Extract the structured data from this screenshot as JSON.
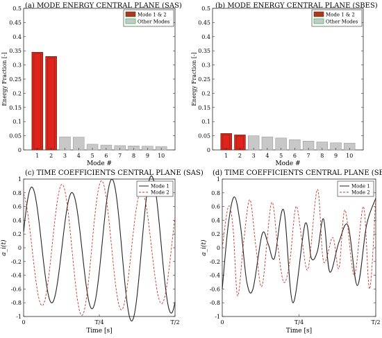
{
  "colors": {
    "mode12_fill": "#e0231c",
    "mode12_inner": "#8b2f12",
    "mode12_legend": "#a63c1c",
    "other_fill": "#c8c8c8",
    "other_legend_inner": "#28c75a",
    "mode1_line": "#222222",
    "mode2_line": "#c0392b",
    "artifact_pink": "#ff3df0"
  },
  "chart_data": [
    {
      "type": "bar",
      "title": "(a) MODE ENERGY CENTRAL PLANE (SAS)",
      "xlabel": "Mode #",
      "ylabel": "Energy Fraction [-]",
      "categories": [
        "1",
        "2",
        "3",
        "4",
        "5",
        "6",
        "7",
        "8",
        "9",
        "10"
      ],
      "values": [
        0.345,
        0.33,
        0.046,
        0.045,
        0.02,
        0.017,
        0.015,
        0.014,
        0.013,
        0.012
      ],
      "highlight_count": 2,
      "ylim": [
        0,
        0.5
      ],
      "yticks": [
        "0",
        "0.05",
        "0.1",
        "0.15",
        "0.2",
        "0.25",
        "0.3",
        "0.35",
        "0.4",
        "0.45",
        "0.5"
      ],
      "legend": [
        "Mode 1 & 2",
        "Other Modes"
      ],
      "legend_position": "top-right",
      "grid": false
    },
    {
      "type": "bar",
      "title": "(b) MODE ENERGY CENTRAL PLANE (SBES)",
      "xlabel": "Mode #",
      "ylabel": "Energy Fraction [-]",
      "categories": [
        "1",
        "2",
        "3",
        "4",
        "5",
        "6",
        "7",
        "8",
        "9",
        "10"
      ],
      "values": [
        0.058,
        0.053,
        0.05,
        0.046,
        0.042,
        0.036,
        0.031,
        0.028,
        0.025,
        0.024
      ],
      "highlight_count": 2,
      "ylim": [
        0,
        0.5
      ],
      "yticks": [
        "0",
        "0.05",
        "0.1",
        "0.15",
        "0.2",
        "0.25",
        "0.3",
        "0.35",
        "0.4",
        "0.45",
        "0.5"
      ],
      "legend": [
        "Mode 1 & 2",
        "Other Modes"
      ],
      "legend_position": "top-right",
      "grid": false
    },
    {
      "type": "line",
      "title": "(c) TIME COEFFICIENTS CENTRAL PLANE (SAS)",
      "xlabel": "Time [s]",
      "ylabel": "a_i(t)",
      "xticks": [
        "0",
        "T/4",
        "T/2"
      ],
      "ylim": [
        -1,
        1
      ],
      "yticks": [
        "-1",
        "-0.8",
        "-0.6",
        "-0.4",
        "-0.2",
        "0",
        "0.2",
        "0.4",
        "0.6",
        "0.8",
        "1"
      ],
      "legend_position": "top-right",
      "x_period_fraction": [
        0,
        0.5
      ],
      "series": [
        {
          "name": "Mode 1",
          "style": "solid",
          "fn": "sas1"
        },
        {
          "name": "Mode 2",
          "style": "dashed",
          "fn": "sas2"
        }
      ]
    },
    {
      "type": "line",
      "title": "(d) TIME COEFFICIENTS CENTRAL PLANE (SBES)",
      "xlabel": "Time [s]",
      "ylabel": "a_i(t)",
      "xticks": [
        "0",
        "T/4",
        "T/2"
      ],
      "ylim": [
        -1,
        1
      ],
      "yticks": [
        "-1",
        "-0.8",
        "-0.6",
        "-0.4",
        "-0.2",
        "0",
        "0.2",
        "0.4",
        "0.6",
        "0.8",
        "1"
      ],
      "legend_position": "top-right",
      "x_period_fraction": [
        0,
        0.5
      ],
      "series": [
        {
          "name": "Mode 1",
          "style": "solid",
          "points": [
            [
              0,
              -0.6
            ],
            [
              0.02,
              0.35
            ],
            [
              0.04,
              0.74
            ],
            [
              0.06,
              0.3
            ],
            [
              0.08,
              -0.5
            ],
            [
              0.1,
              -0.6
            ],
            [
              0.13,
              0.2
            ],
            [
              0.15,
              0.05
            ],
            [
              0.17,
              -0.15
            ],
            [
              0.2,
              0.55
            ],
            [
              0.23,
              -0.8
            ],
            [
              0.27,
              0.35
            ],
            [
              0.29,
              -0.15
            ],
            [
              0.31,
              -0.05
            ],
            [
              0.33,
              0.42
            ],
            [
              0.35,
              -0.35
            ],
            [
              0.38,
              0.08
            ],
            [
              0.41,
              0.32
            ],
            [
              0.44,
              -0.55
            ],
            [
              0.47,
              0.33
            ],
            [
              0.5,
              0.72
            ]
          ]
        },
        {
          "name": "Mode 2",
          "style": "dashed",
          "points": [
            [
              0,
              0.0
            ],
            [
              0.02,
              0.6
            ],
            [
              0.035,
              0.3
            ],
            [
              0.05,
              -0.7
            ],
            [
              0.07,
              0.1
            ],
            [
              0.09,
              0.7
            ],
            [
              0.11,
              0.0
            ],
            [
              0.13,
              -0.55
            ],
            [
              0.16,
              0.65
            ],
            [
              0.18,
              0.05
            ],
            [
              0.2,
              -0.5
            ],
            [
              0.22,
              -0.2
            ],
            [
              0.24,
              0.6
            ],
            [
              0.26,
              0.1
            ],
            [
              0.28,
              -0.3
            ],
            [
              0.31,
              0.85
            ],
            [
              0.33,
              -0.2
            ],
            [
              0.36,
              0.15
            ],
            [
              0.38,
              -0.3
            ],
            [
              0.4,
              0.55
            ],
            [
              0.43,
              -0.4
            ],
            [
              0.46,
              0.6
            ],
            [
              0.48,
              -0.6
            ],
            [
              0.5,
              0.72
            ]
          ]
        }
      ]
    }
  ]
}
